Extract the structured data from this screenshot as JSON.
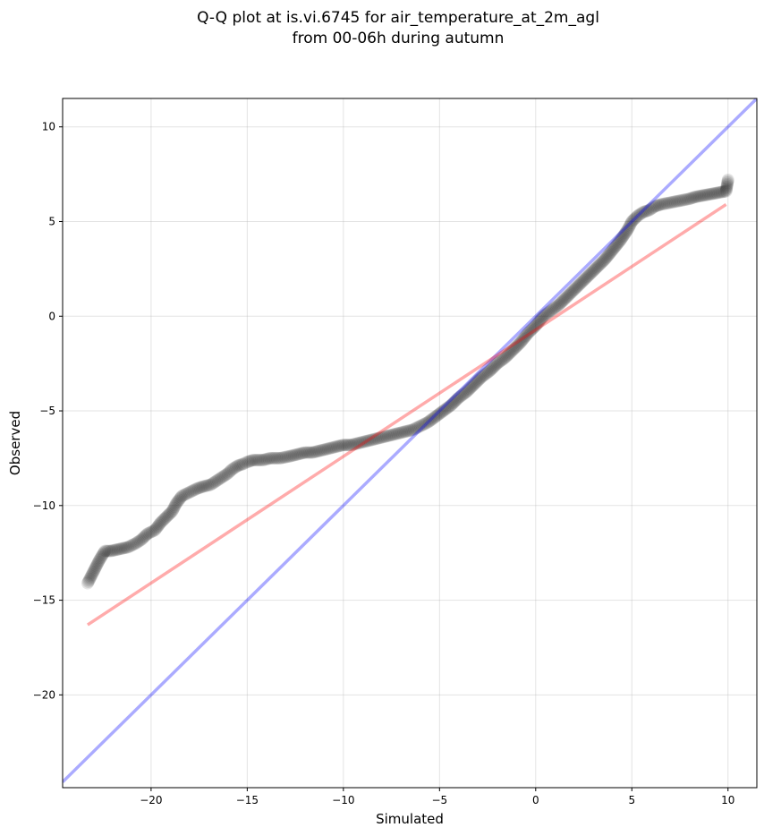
{
  "chart_data": {
    "type": "scatter",
    "title": "Q-Q plot at is.vi.6745 for air_temperature_at_2m_agl",
    "subtitle": "from 00-06h during autumn",
    "xlabel": "Simulated",
    "ylabel": "Observed",
    "xlim": [
      -24.6,
      11.5
    ],
    "ylim": [
      -24.9,
      11.5
    ],
    "xticks": [
      -20,
      -15,
      -10,
      -5,
      0,
      5,
      10
    ],
    "yticks": [
      -20,
      -15,
      -10,
      -5,
      0,
      5,
      10
    ],
    "xtick_labels": [
      "−20",
      "−15",
      "−10",
      "−5",
      "0",
      "5",
      "10"
    ],
    "ytick_labels": [
      "−20",
      "−15",
      "−10",
      "−5",
      "0",
      "5",
      "10"
    ],
    "grid": true,
    "point_color": "#000000",
    "identity_line_color": "#0000ff",
    "fit_line_color": "#ff0000",
    "identity_line": {
      "x": [
        -24.6,
        11.5
      ],
      "y": [
        -24.6,
        11.5
      ]
    },
    "fit_line": {
      "x": [
        -23.3,
        9.9
      ],
      "y": [
        -16.3,
        5.9
      ]
    },
    "points": {
      "x": [
        -23.3,
        -23.0,
        -22.7,
        -22.4,
        -22.1,
        -21.2,
        -20.8,
        -20.5,
        -20.2,
        -19.8,
        -19.5,
        -19.2,
        -18.9,
        -18.7,
        -18.4,
        -18.0,
        -17.6,
        -17.3,
        -16.9,
        -16.6,
        -16.3,
        -16.0,
        -15.8,
        -15.5,
        -15.2,
        -15.0,
        -14.7,
        -14.2,
        -13.8,
        -13.3,
        -12.8,
        -12.4,
        -12.0,
        -11.6,
        -11.2,
        -10.8,
        -10.4,
        -10.0,
        -9.6,
        -9.2,
        -8.8,
        -8.4,
        -8.0,
        -7.6,
        -7.2,
        -6.8,
        -6.4,
        -6.0,
        -5.6,
        -5.2,
        -4.8,
        -4.4,
        -4.0,
        -3.6,
        -3.2,
        -2.8,
        -2.4,
        -2.0,
        -1.6,
        -1.2,
        -0.8,
        -0.4,
        0.0,
        0.4,
        0.8,
        1.2,
        1.6,
        2.0,
        2.4,
        2.8,
        3.2,
        3.6,
        4.0,
        4.4,
        4.8,
        5.0,
        5.3,
        5.6,
        5.9,
        6.2,
        6.5,
        7.0,
        7.5,
        8.0,
        8.3,
        9.9,
        10.0
      ],
      "y": [
        -14.1,
        -13.5,
        -12.9,
        -12.4,
        -12.4,
        -12.2,
        -12.0,
        -11.8,
        -11.5,
        -11.3,
        -10.9,
        -10.6,
        -10.3,
        -9.9,
        -9.5,
        -9.3,
        -9.1,
        -9.0,
        -8.9,
        -8.7,
        -8.5,
        -8.3,
        -8.1,
        -7.9,
        -7.8,
        -7.7,
        -7.6,
        -7.6,
        -7.5,
        -7.5,
        -7.4,
        -7.3,
        -7.2,
        -7.2,
        -7.1,
        -7.0,
        -6.9,
        -6.8,
        -6.8,
        -6.7,
        -6.6,
        -6.5,
        -6.4,
        -6.3,
        -6.2,
        -6.1,
        -6.0,
        -5.8,
        -5.6,
        -5.3,
        -5.0,
        -4.7,
        -4.3,
        -4.0,
        -3.6,
        -3.2,
        -2.9,
        -2.5,
        -2.2,
        -1.8,
        -1.4,
        -0.9,
        -0.5,
        0.0,
        0.3,
        0.6,
        1.0,
        1.4,
        1.8,
        2.2,
        2.6,
        3.0,
        3.5,
        4.0,
        4.6,
        5.0,
        5.3,
        5.5,
        5.6,
        5.8,
        5.9,
        6.0,
        6.1,
        6.2,
        6.3,
        6.6,
        7.2
      ]
    }
  }
}
